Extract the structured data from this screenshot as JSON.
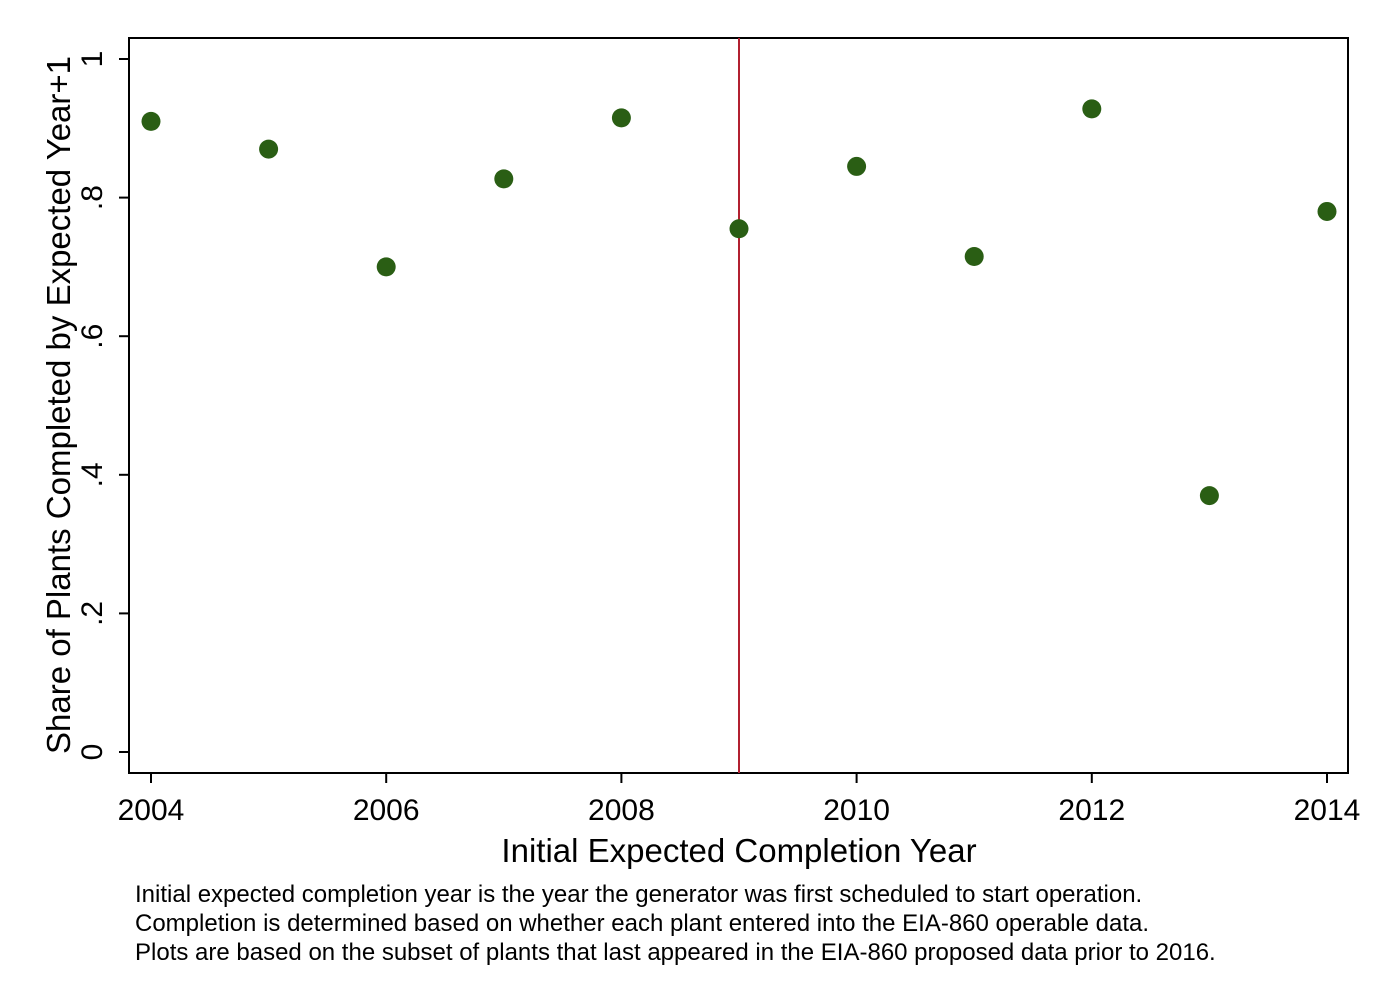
{
  "chart_data": {
    "type": "scatter",
    "xlabel": "Initial Expected Completion Year",
    "ylabel": "Share of Plants Completed by Expected Year+1",
    "xlim": [
      2004,
      2014
    ],
    "ylim": [
      0,
      1
    ],
    "x_ticks": [
      {
        "value": 2004,
        "label": "2004"
      },
      {
        "value": 2006,
        "label": "2006"
      },
      {
        "value": 2008,
        "label": "2008"
      },
      {
        "value": 2010,
        "label": "2010"
      },
      {
        "value": 2012,
        "label": "2012"
      },
      {
        "value": 2014,
        "label": "2014"
      }
    ],
    "y_ticks": [
      {
        "value": 0,
        "label": "0"
      },
      {
        "value": 0.2,
        "label": ".2"
      },
      {
        "value": 0.4,
        "label": ".4"
      },
      {
        "value": 0.6,
        "label": ".6"
      },
      {
        "value": 0.8,
        "label": ".8"
      },
      {
        "value": 1,
        "label": "1"
      }
    ],
    "x": [
      2004,
      2005,
      2006,
      2007,
      2008,
      2009,
      2010,
      2011,
      2012,
      2013,
      2014
    ],
    "y": [
      0.91,
      0.87,
      0.7,
      0.827,
      0.915,
      0.755,
      0.845,
      0.715,
      0.928,
      0.37,
      0.78
    ],
    "reference_line": {
      "x": 2009,
      "color": "#b22030"
    },
    "marker_color": "#2a5e14",
    "grid": false,
    "notes": [
      "Initial expected completion year is the year the generator was first scheduled to start operation.",
      "Completion is determined based on whether each plant entered into the EIA-860 operable data.",
      "Plots are based on the subset of plants that last appeared in the EIA-860 proposed data prior to 2016."
    ]
  }
}
